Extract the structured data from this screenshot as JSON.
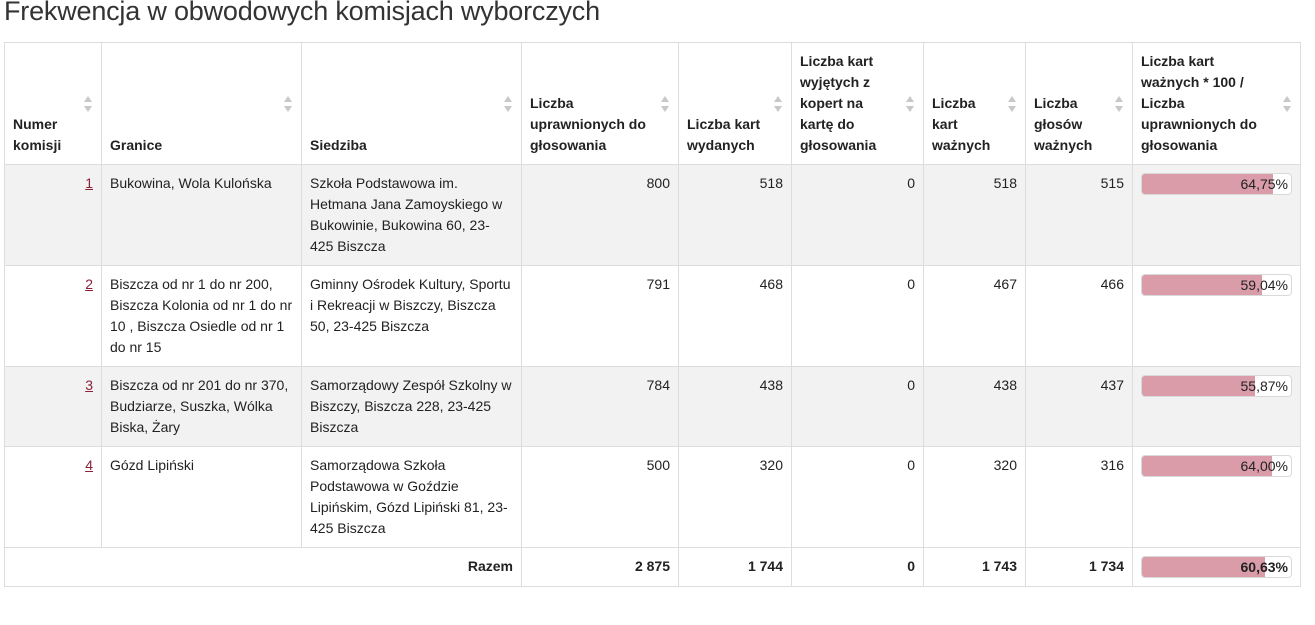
{
  "title": "Frekwencja w obwodowych komisjach wyborczych",
  "headers": {
    "numer": "Numer komisji",
    "granice": "Granice",
    "siedziba": "Siedziba",
    "uprawnionych": "Liczba uprawnionych do głosowania",
    "wydanych": "Liczba kart wydanych",
    "wyjetych": "Liczba kart wyjętych z kopert na kartę do głosowania",
    "waznych": "Liczba kart ważnych",
    "glosow": "Liczba głosów ważnych",
    "frekwencja": "Liczba kart ważnych * 100 / Liczba uprawnionych do głosowania"
  },
  "rows": [
    {
      "id": "1",
      "granice": "Bukowina, Wola Kulońska",
      "siedziba": "Szkoła Podstawowa im. Hetmana Jana Zamoyskiego w Bukowinie, Bukowina 60, 23-425 Biszcza",
      "uprawnionych": "800",
      "wydanych": "518",
      "wyjetych": "0",
      "waznych": "518",
      "glosow": "515",
      "frekwencja": "64,75%",
      "frekwencja_value": 64.75
    },
    {
      "id": "2",
      "granice": "Biszcza od nr 1 do nr 200, Biszcza Kolonia od nr 1 do nr 10 , Biszcza Osiedle od nr 1 do nr 15",
      "siedziba": "Gminny Ośrodek Kultury, Sportu i Rekreacji w Biszczy, Biszcza 50, 23-425 Biszcza",
      "uprawnionych": "791",
      "wydanych": "468",
      "wyjetych": "0",
      "waznych": "467",
      "glosow": "466",
      "frekwencja": "59,04%",
      "frekwencja_value": 59.04
    },
    {
      "id": "3",
      "granice": "Biszcza od nr 201 do nr 370, Budziarze, Suszka, Wólka Biska, Żary",
      "siedziba": "Samorządowy Zespół Szkolny w Biszczy, Biszcza 228, 23-425 Biszcza",
      "uprawnionych": "784",
      "wydanych": "438",
      "wyjetych": "0",
      "waznych": "438",
      "glosow": "437",
      "frekwencja": "55,87%",
      "frekwencja_value": 55.87
    },
    {
      "id": "4",
      "granice": "Gózd Lipiński",
      "siedziba": "Samorządowa Szkoła Podstawowa w Goździe Lipińskim, Gózd Lipiński 81, 23-425 Biszcza",
      "uprawnionych": "500",
      "wydanych": "320",
      "wyjetych": "0",
      "waznych": "320",
      "glosow": "316",
      "frekwencja": "64,00%",
      "frekwencja_value": 64.0
    }
  ],
  "total": {
    "label": "Razem",
    "uprawnionych": "2 875",
    "wydanych": "1 744",
    "wyjetych": "0",
    "waznych": "1 743",
    "glosow": "1 734",
    "frekwencja": "60,63%",
    "frekwencja_value": 60.63
  },
  "colors": {
    "bar_fill": "#d99ca8",
    "link": "#8a1f3a",
    "stripe": "#f2f2f2"
  }
}
